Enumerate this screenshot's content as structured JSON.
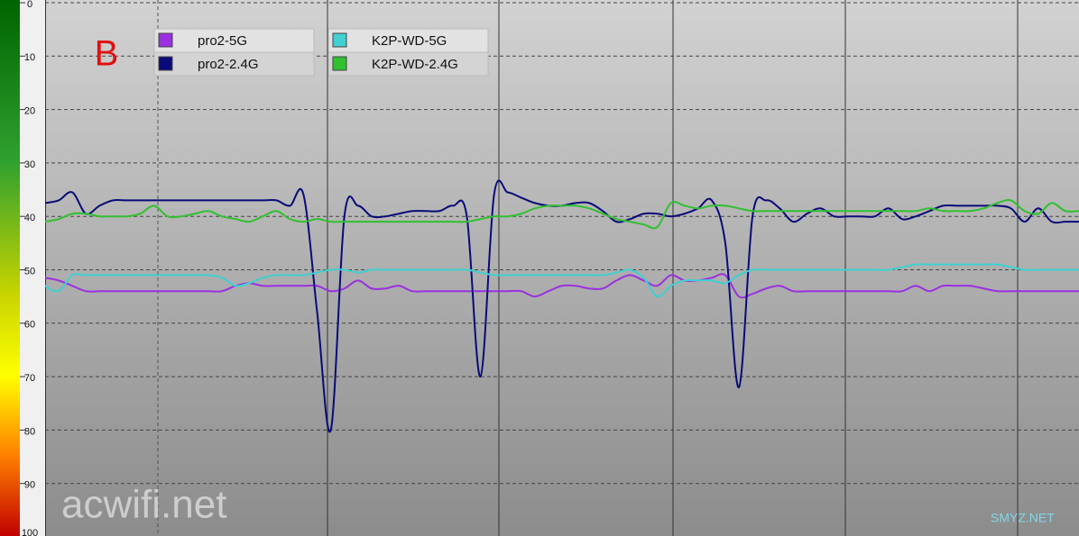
{
  "chart_data": {
    "type": "line",
    "annotations": [
      "B"
    ],
    "watermarks": [
      "acwifi.net",
      "SMYZ.NET"
    ],
    "ylim": [
      0,
      100
    ],
    "yticks": [
      0,
      10,
      20,
      30,
      40,
      50,
      60,
      70,
      80,
      90,
      100
    ],
    "y_inverted": true,
    "grid": true,
    "categories": [
      null,
      null,
      null,
      null,
      null,
      null,
      null,
      null,
      null,
      null,
      null,
      null,
      null,
      null,
      null,
      null,
      null,
      null,
      null,
      null,
      null,
      null,
      null,
      null,
      null,
      null,
      null,
      null,
      null,
      null,
      null,
      null,
      null,
      null,
      null,
      null,
      null,
      null,
      null,
      null,
      null,
      null,
      null,
      null,
      null,
      null,
      null,
      null,
      null,
      null,
      null,
      null,
      null,
      null,
      null,
      null,
      null,
      null,
      null,
      null,
      null,
      null,
      null,
      null,
      null,
      null,
      null,
      null,
      null,
      null,
      null,
      null,
      null,
      null,
      null,
      null,
      null
    ],
    "series": [
      {
        "name": "pro2-5G",
        "color": "#9b30e0",
        "values": [
          51.5,
          52,
          53,
          54,
          54,
          54,
          54,
          54,
          54,
          54,
          54,
          54,
          54,
          54,
          53,
          52.5,
          53,
          53,
          53,
          53,
          53,
          54,
          53.5,
          52,
          53.5,
          53.5,
          53,
          54,
          54,
          54,
          54,
          54,
          54,
          54,
          54,
          54,
          55,
          54,
          53,
          53,
          53.5,
          53.5,
          52,
          51,
          52,
          53,
          51,
          52,
          52,
          51.5,
          51,
          55,
          54.5,
          53.5,
          53,
          54,
          54,
          54,
          54,
          54,
          54,
          54,
          54,
          54,
          53,
          54,
          53,
          53,
          53,
          53.5,
          54,
          54,
          54,
          54,
          54,
          54,
          54
        ]
      },
      {
        "name": "pro2-2.4G",
        "color": "#0a0a78",
        "values": [
          37.5,
          37,
          35.5,
          39.5,
          38,
          37,
          37,
          37,
          37,
          37,
          37,
          37,
          37,
          37,
          37,
          37,
          37,
          37,
          38,
          36,
          58,
          80,
          40,
          38,
          40,
          40,
          39.5,
          39,
          39,
          39,
          38,
          40,
          70,
          36,
          35.5,
          36.5,
          37.5,
          38,
          38,
          37.5,
          37.5,
          39,
          41,
          40.5,
          39.5,
          39.5,
          40,
          39.5,
          38.5,
          37,
          45,
          72,
          40,
          37,
          38.5,
          41,
          39.5,
          38.5,
          40,
          40,
          40,
          40,
          38.5,
          40.5,
          40,
          39,
          38,
          38,
          38,
          38,
          38,
          38.5,
          41,
          38.5,
          41,
          41,
          41
        ]
      },
      {
        "name": "K2P-WD-5G",
        "color": "#40d0d0",
        "values": [
          53,
          54,
          51,
          51,
          51,
          51,
          51,
          51,
          51,
          51,
          51,
          51,
          51,
          51.5,
          53,
          52.5,
          51.5,
          51,
          51,
          51,
          50.5,
          50,
          50,
          50.5,
          50,
          50,
          50,
          50,
          50,
          50,
          50,
          50,
          50.5,
          51,
          51,
          51,
          51,
          51,
          51,
          51,
          51,
          51,
          50.5,
          50,
          51.5,
          55,
          53,
          52,
          52,
          52,
          52.5,
          51,
          50,
          50,
          50,
          50,
          50,
          50,
          50,
          50,
          50,
          50,
          50,
          49.5,
          49,
          49,
          49,
          49,
          49,
          49,
          49,
          49.5,
          50,
          50,
          50,
          50,
          50
        ]
      },
      {
        "name": "K2P-WD-2.4G",
        "color": "#30c030",
        "values": [
          41,
          40.5,
          39.5,
          39.5,
          40,
          40,
          40,
          39.5,
          38,
          40,
          40,
          39.5,
          39,
          40,
          40.5,
          41,
          40,
          39,
          40.5,
          41,
          40.5,
          41,
          41,
          41,
          41,
          41,
          41,
          41,
          41,
          41,
          41,
          41,
          40.5,
          40,
          40,
          39.5,
          38.5,
          38,
          38,
          38,
          38.5,
          39.5,
          40.5,
          41,
          41.5,
          42,
          37.5,
          38,
          38.5,
          38,
          38,
          38.5,
          39,
          39,
          39,
          39,
          39,
          39,
          39,
          39,
          39,
          39,
          39,
          39,
          39,
          38.5,
          39,
          39,
          39,
          38.5,
          37.5,
          37,
          39,
          39.5,
          37.5,
          39,
          39
        ]
      }
    ]
  }
}
